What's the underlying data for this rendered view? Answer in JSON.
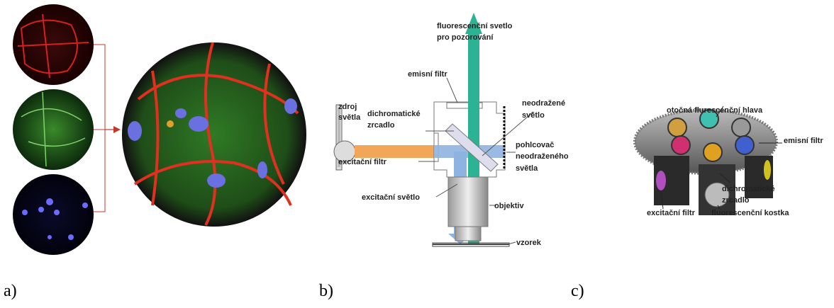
{
  "panels": [
    {
      "label": "a)"
    },
    {
      "label": "b)",
      "labels": {
        "observed_light": [
          "fluorescenční svetlo",
          "pro pozorování"
        ],
        "emission_filter": [
          "emisní filtr"
        ],
        "light_source": [
          "zdroj",
          "světla"
        ],
        "dichroic_mirror": [
          "dichromatické",
          "zrcadlo"
        ],
        "unreflected_light": [
          "neodražené",
          "světlo"
        ],
        "absorber": [
          "pohlcovač",
          "neodraženého",
          "světla"
        ],
        "excitation_filter": [
          "excitační filtr"
        ],
        "excitation_light": [
          "excitační světlo"
        ],
        "objective": [
          "objektiv"
        ],
        "sample": [
          "vzorek"
        ]
      }
    },
    {
      "label": "c)",
      "labels": {
        "turret": [
          "otočná flurescenční hlava"
        ],
        "emission_filter": [
          "emisní filtr"
        ],
        "dichroic_mirror": [
          "dichromatické",
          "zrcadlo"
        ],
        "excitation_filter": [
          "excitační filtr"
        ],
        "cube": [
          "fluorescenční kostka"
        ]
      }
    }
  ]
}
